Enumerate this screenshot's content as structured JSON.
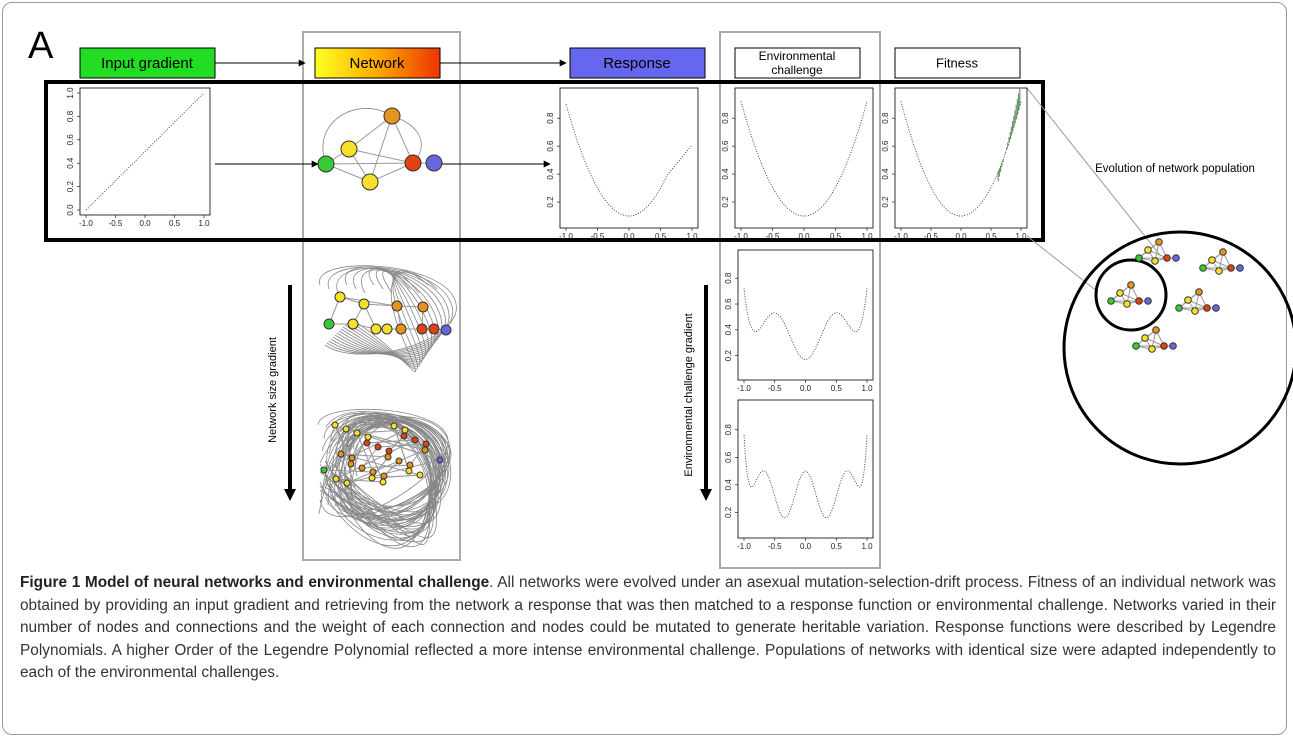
{
  "panel_label": "A",
  "boxes": {
    "input": "Input gradient",
    "network": "Network",
    "response": "Response",
    "environment": [
      "Environmental",
      "challenge"
    ],
    "fitness": "Fitness"
  },
  "plots": [
    {
      "yticks": [
        "0.0",
        "0.2",
        "0.4",
        "0.6",
        "0.8",
        "1.0"
      ],
      "xticks": [
        "-1.0",
        "-0.5",
        "0.0",
        "0.5",
        "1.0"
      ]
    },
    {
      "yticks": [
        "0.2",
        "0.4",
        "0.6",
        "0.8"
      ],
      "xticks": [
        "-1.0",
        "-0.5",
        "0.0",
        "0.5",
        "1.0"
      ]
    },
    {
      "yticks": [
        "0.2",
        "0.4",
        "0.6",
        "0.8"
      ],
      "xticks": [
        "-1.0",
        "-0.5",
        "0.0",
        "0.5",
        "1.0"
      ]
    },
    {
      "yticks": [
        "0.2",
        "0.4",
        "0.6",
        "0.8"
      ],
      "xticks": [
        "-1.0",
        "-0.5",
        "0.0",
        "0.5",
        "1.0"
      ]
    },
    {
      "yticks": [
        "0.2",
        "0.4",
        "0.6",
        "0.8"
      ],
      "xticks": [
        "-1.0",
        "-0.5",
        "0.0",
        "0.5",
        "1.0"
      ]
    },
    {
      "yticks": [
        "0.2",
        "0.4",
        "0.6",
        "0.8"
      ],
      "xticks": [
        "-1.0",
        "-0.5",
        "0.0",
        "0.5",
        "1.0"
      ]
    }
  ],
  "labels": {
    "population": "Evolution of network population",
    "size_gradient": "Network size gradient",
    "challenge_gradient": "Environmental challenge gradient"
  },
  "caption": {
    "title": "Figure 1 Model of neural networks and environmental challenge",
    "body": ". All networks were evolved under an asexual mutation-selection-drift process. Fitness of an individual network was obtained by providing an input gradient and retrieving from the network a response that was then matched to a response function or environmental challenge. Networks varied in their number of nodes and connections and the weight of each connection and nodes could be mutated to generate heritable variation. Response functions were described by Legendre Polynomials. A higher Order of the Legendre Polynomial reflected a more intense environmental challenge. Populations of networks with identical size were adapted independently to each of the environmental challenges."
  }
}
